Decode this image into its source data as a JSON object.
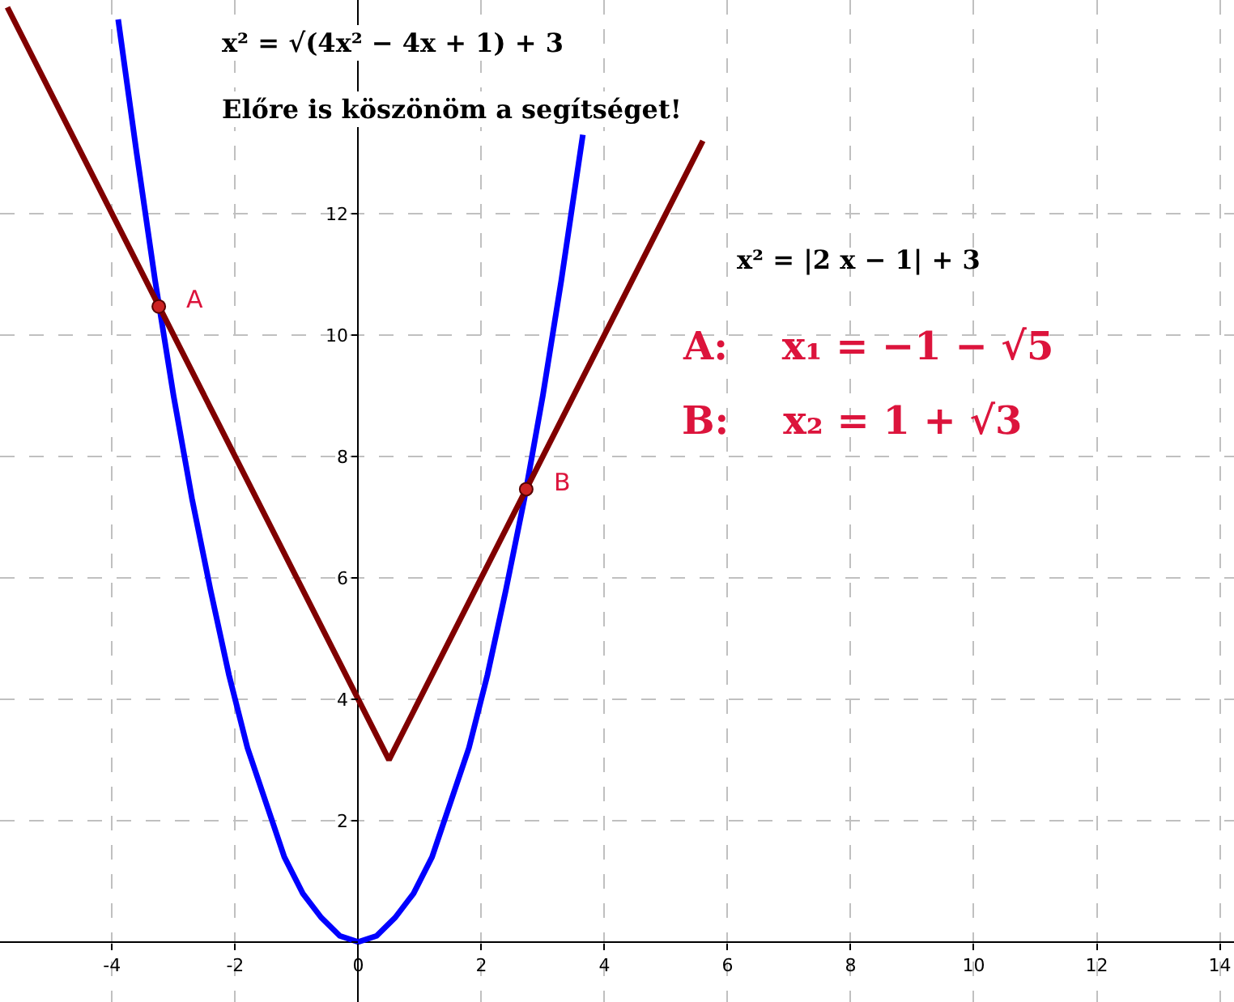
{
  "chart_data": {
    "type": "line",
    "xlim": [
      -5.82,
      14.23
    ],
    "ylim": [
      -0.99,
      15.52
    ],
    "xticks": [
      -4,
      -2,
      {
        "value": 0,
        "label": "0"
      },
      2,
      4,
      6,
      8,
      10,
      12,
      14
    ],
    "yticks": [
      {
        "value": 0,
        "label": null
      },
      2,
      4,
      6,
      8,
      10,
      12
    ],
    "grid": true,
    "series": [
      {
        "color": "#0000ff",
        "x": [
          -3.9,
          -3.6,
          -3.3,
          -3.0,
          -2.7,
          -2.4,
          -2.1,
          -1.8,
          -1.5,
          -1.2,
          -0.9,
          -0.6,
          -0.3,
          0,
          0.3,
          0.6,
          0.9,
          1.2,
          1.5,
          1.8,
          2.1,
          2.4,
          2.7,
          3.0,
          3.3,
          3.65
        ],
        "values": [
          15.2,
          13.0,
          10.9,
          9.0,
          7.3,
          5.8,
          4.4,
          3.2,
          2.3,
          1.4,
          0.8,
          0.4,
          0.1,
          0,
          0.1,
          0.4,
          0.8,
          1.4,
          2.3,
          3.2,
          4.4,
          5.8,
          7.3,
          9.0,
          10.9,
          13.3
        ]
      },
      {
        "color": "#800000",
        "x": [
          -5.7,
          0.5,
          5.6
        ],
        "values": [
          15.4,
          3,
          13.2
        ]
      },
      {
        "type": "scatter",
        "color": "#cc2222",
        "marker": "circle",
        "x": [
          -3.24,
          2.73
        ],
        "values": [
          10.47,
          7.46
        ]
      }
    ],
    "annotations": [
      "x² = √(4x² − 4x + 1) + 3",
      "Előre is köszönöm a segítséget!",
      "x² = |2 x − 1| + 3",
      "A:    x₁ = −1 − √5",
      "B:    x₂ = 1 + √3",
      {
        "text": "A",
        "x": -3.24,
        "y": 10.47
      },
      {
        "text": "B",
        "x": 2.73,
        "y": 7.46
      }
    ]
  }
}
